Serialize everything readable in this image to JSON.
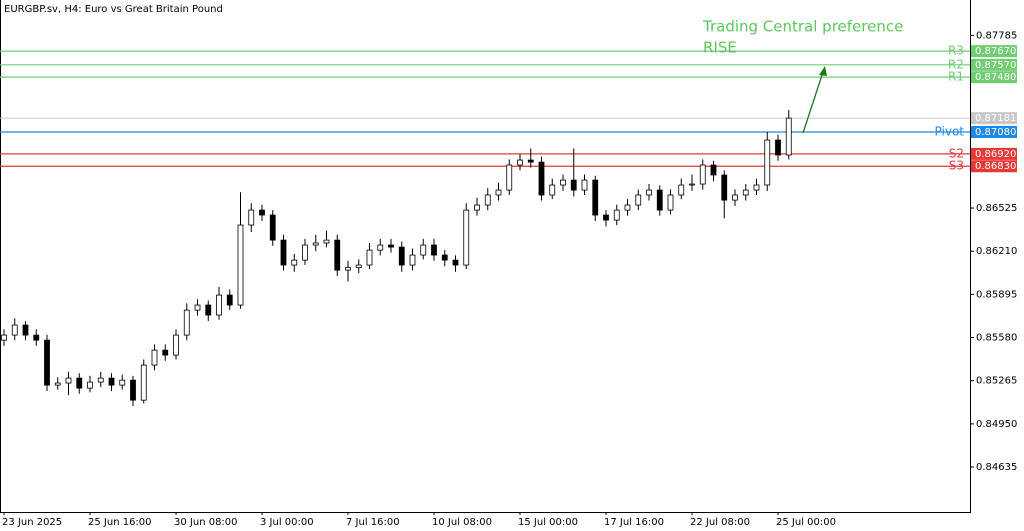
{
  "chart_data": {
    "type": "candlestick",
    "title": "EURGBP.sv, H4:  Euro vs Great Britain Pound",
    "annotations": [
      "Trading Central preference",
      "RISE"
    ],
    "ylim": [
      0.84307,
      0.88043
    ],
    "yticks": [
      {
        "value": 0.87785,
        "label": "0.87785"
      },
      {
        "value": 0.86525,
        "label": "0.86525"
      },
      {
        "value": 0.8621,
        "label": "0.86210"
      },
      {
        "value": 0.85895,
        "label": "0.85895"
      },
      {
        "value": 0.8558,
        "label": "0.85580"
      },
      {
        "value": 0.85265,
        "label": "0.85265"
      },
      {
        "value": 0.8495,
        "label": "0.84950"
      },
      {
        "value": 0.84635,
        "label": "0.84635"
      }
    ],
    "levels": [
      {
        "name": "R3",
        "value": 0.8767,
        "label": "0.87670",
        "color": "#72cc72"
      },
      {
        "name": "R2",
        "value": 0.8757,
        "label": "0.87570",
        "color": "#72cc72"
      },
      {
        "name": "R1",
        "value": 0.8748,
        "label": "0.87480",
        "color": "#72cc72"
      },
      {
        "name": "Pivot",
        "value": 0.8708,
        "label": "0.87080",
        "color": "#1e88e5"
      },
      {
        "name": "S2",
        "value": 0.8692,
        "label": "0.86920",
        "color": "#e53935"
      },
      {
        "name": "S3",
        "value": 0.8683,
        "label": "0.86830",
        "color": "#e53935"
      }
    ],
    "current_price": 0.87181,
    "up_color": "#ffffff",
    "down_color": "#000000",
    "categories": [
      "23 Jun 2025",
      null,
      null,
      null,
      null,
      null,
      null,
      null,
      "25 Jun 16:00",
      null,
      null,
      null,
      null,
      null,
      null,
      null,
      "30 Jun 08:00",
      null,
      null,
      null,
      null,
      null,
      null,
      null,
      "3 Jul 00:00",
      null,
      null,
      null,
      null,
      null,
      null,
      null,
      "7 Jul 16:00",
      null,
      null,
      null,
      null,
      null,
      null,
      null,
      "10 Jul 08:00",
      null,
      null,
      null,
      null,
      null,
      null,
      null,
      "15 Jul 00:00",
      null,
      null,
      null,
      null,
      null,
      null,
      null,
      "17 Jul 16:00",
      null,
      null,
      null,
      null,
      null,
      null,
      null,
      "22 Jul 08:00",
      null,
      null,
      null,
      null,
      null,
      null,
      null,
      "25 Jul 00:00",
      null
    ],
    "ohlc": [
      [
        0.85561,
        0.8564,
        0.8552,
        0.85598
      ],
      [
        0.85598,
        0.8572,
        0.8556,
        0.85671
      ],
      [
        0.85671,
        0.857,
        0.8556,
        0.85598
      ],
      [
        0.85598,
        0.8564,
        0.8552,
        0.85561
      ],
      [
        0.85561,
        0.856,
        0.8519,
        0.85233
      ],
      [
        0.85233,
        0.8529,
        0.852,
        0.85248
      ],
      [
        0.85248,
        0.8533,
        0.8516,
        0.85284
      ],
      [
        0.85284,
        0.8532,
        0.8517,
        0.85211
      ],
      [
        0.85211,
        0.853,
        0.8518,
        0.85255
      ],
      [
        0.85255,
        0.8533,
        0.8522,
        0.85284
      ],
      [
        0.85284,
        0.8532,
        0.8519,
        0.85233
      ],
      [
        0.85233,
        0.8531,
        0.852,
        0.85269
      ],
      [
        0.85269,
        0.853,
        0.8508,
        0.85123
      ],
      [
        0.85123,
        0.8542,
        0.851,
        0.85379
      ],
      [
        0.85379,
        0.8553,
        0.8534,
        0.85488
      ],
      [
        0.85488,
        0.8553,
        0.8541,
        0.85452
      ],
      [
        0.85452,
        0.8564,
        0.8542,
        0.85598
      ],
      [
        0.85598,
        0.8583,
        0.8556,
        0.8578
      ],
      [
        0.8578,
        0.8586,
        0.8574,
        0.85817
      ],
      [
        0.85817,
        0.8585,
        0.857,
        0.85744
      ],
      [
        0.85744,
        0.8595,
        0.8571,
        0.8589
      ],
      [
        0.8589,
        0.8593,
        0.8578,
        0.85817
      ],
      [
        0.85817,
        0.8664,
        0.8579,
        0.86401
      ],
      [
        0.86401,
        0.8656,
        0.8635,
        0.8651
      ],
      [
        0.8651,
        0.8655,
        0.8643,
        0.86474
      ],
      [
        0.86474,
        0.8651,
        0.8625,
        0.86291
      ],
      [
        0.86291,
        0.8633,
        0.8607,
        0.86109
      ],
      [
        0.86109,
        0.8619,
        0.8606,
        0.86145
      ],
      [
        0.86145,
        0.863,
        0.8611,
        0.86255
      ],
      [
        0.86255,
        0.8633,
        0.8621,
        0.8627
      ],
      [
        0.8627,
        0.8636,
        0.8624,
        0.86291
      ],
      [
        0.86291,
        0.8633,
        0.8603,
        0.86072
      ],
      [
        0.86072,
        0.8614,
        0.8599,
        0.8609
      ],
      [
        0.8609,
        0.8615,
        0.8605,
        0.86109
      ],
      [
        0.86109,
        0.8627,
        0.8608,
        0.86218
      ],
      [
        0.86218,
        0.863,
        0.8618,
        0.86255
      ],
      [
        0.86255,
        0.863,
        0.862,
        0.8624
      ],
      [
        0.8624,
        0.8628,
        0.8606,
        0.86109
      ],
      [
        0.86109,
        0.8623,
        0.8607,
        0.86182
      ],
      [
        0.86182,
        0.863,
        0.8615,
        0.86255
      ],
      [
        0.86255,
        0.863,
        0.8614,
        0.86182
      ],
      [
        0.86182,
        0.8622,
        0.861,
        0.86145
      ],
      [
        0.86145,
        0.8618,
        0.8606,
        0.86109
      ],
      [
        0.86109,
        0.8656,
        0.8608,
        0.8651
      ],
      [
        0.8651,
        0.866,
        0.8647,
        0.86547
      ],
      [
        0.86547,
        0.8667,
        0.8651,
        0.8662
      ],
      [
        0.8662,
        0.8671,
        0.8658,
        0.86656
      ],
      [
        0.86656,
        0.8688,
        0.8662,
        0.86839
      ],
      [
        0.86839,
        0.8692,
        0.868,
        0.86875
      ],
      [
        0.86875,
        0.8696,
        0.8682,
        0.8686
      ],
      [
        0.8686,
        0.869,
        0.8658,
        0.8662
      ],
      [
        0.8662,
        0.8674,
        0.8659,
        0.86693
      ],
      [
        0.86693,
        0.8677,
        0.8665,
        0.86729
      ],
      [
        0.86729,
        0.8696,
        0.8661,
        0.86656
      ],
      [
        0.86656,
        0.8677,
        0.8662,
        0.86729
      ],
      [
        0.86729,
        0.8676,
        0.8643,
        0.86474
      ],
      [
        0.86474,
        0.8651,
        0.8639,
        0.86437
      ],
      [
        0.86437,
        0.8655,
        0.864,
        0.8651
      ],
      [
        0.8651,
        0.8659,
        0.8647,
        0.86547
      ],
      [
        0.86547,
        0.8666,
        0.8651,
        0.8662
      ],
      [
        0.8662,
        0.867,
        0.8658,
        0.86656
      ],
      [
        0.86656,
        0.8669,
        0.8647,
        0.8651
      ],
      [
        0.8651,
        0.8666,
        0.8648,
        0.8662
      ],
      [
        0.8662,
        0.8674,
        0.8659,
        0.86693
      ],
      [
        0.86693,
        0.8677,
        0.8665,
        0.867
      ],
      [
        0.867,
        0.8688,
        0.8666,
        0.86839
      ],
      [
        0.86839,
        0.8687,
        0.8672,
        0.86766
      ],
      [
        0.86766,
        0.868,
        0.8645,
        0.86583
      ],
      [
        0.86583,
        0.8666,
        0.8654,
        0.8662
      ],
      [
        0.8662,
        0.867,
        0.8658,
        0.86656
      ],
      [
        0.86656,
        0.8674,
        0.8662,
        0.86693
      ],
      [
        0.86693,
        0.8708,
        0.8665,
        0.87021
      ],
      [
        0.87021,
        0.8706,
        0.8687,
        0.86912
      ],
      [
        0.86912,
        0.8724,
        0.8688,
        0.87181
      ]
    ]
  }
}
